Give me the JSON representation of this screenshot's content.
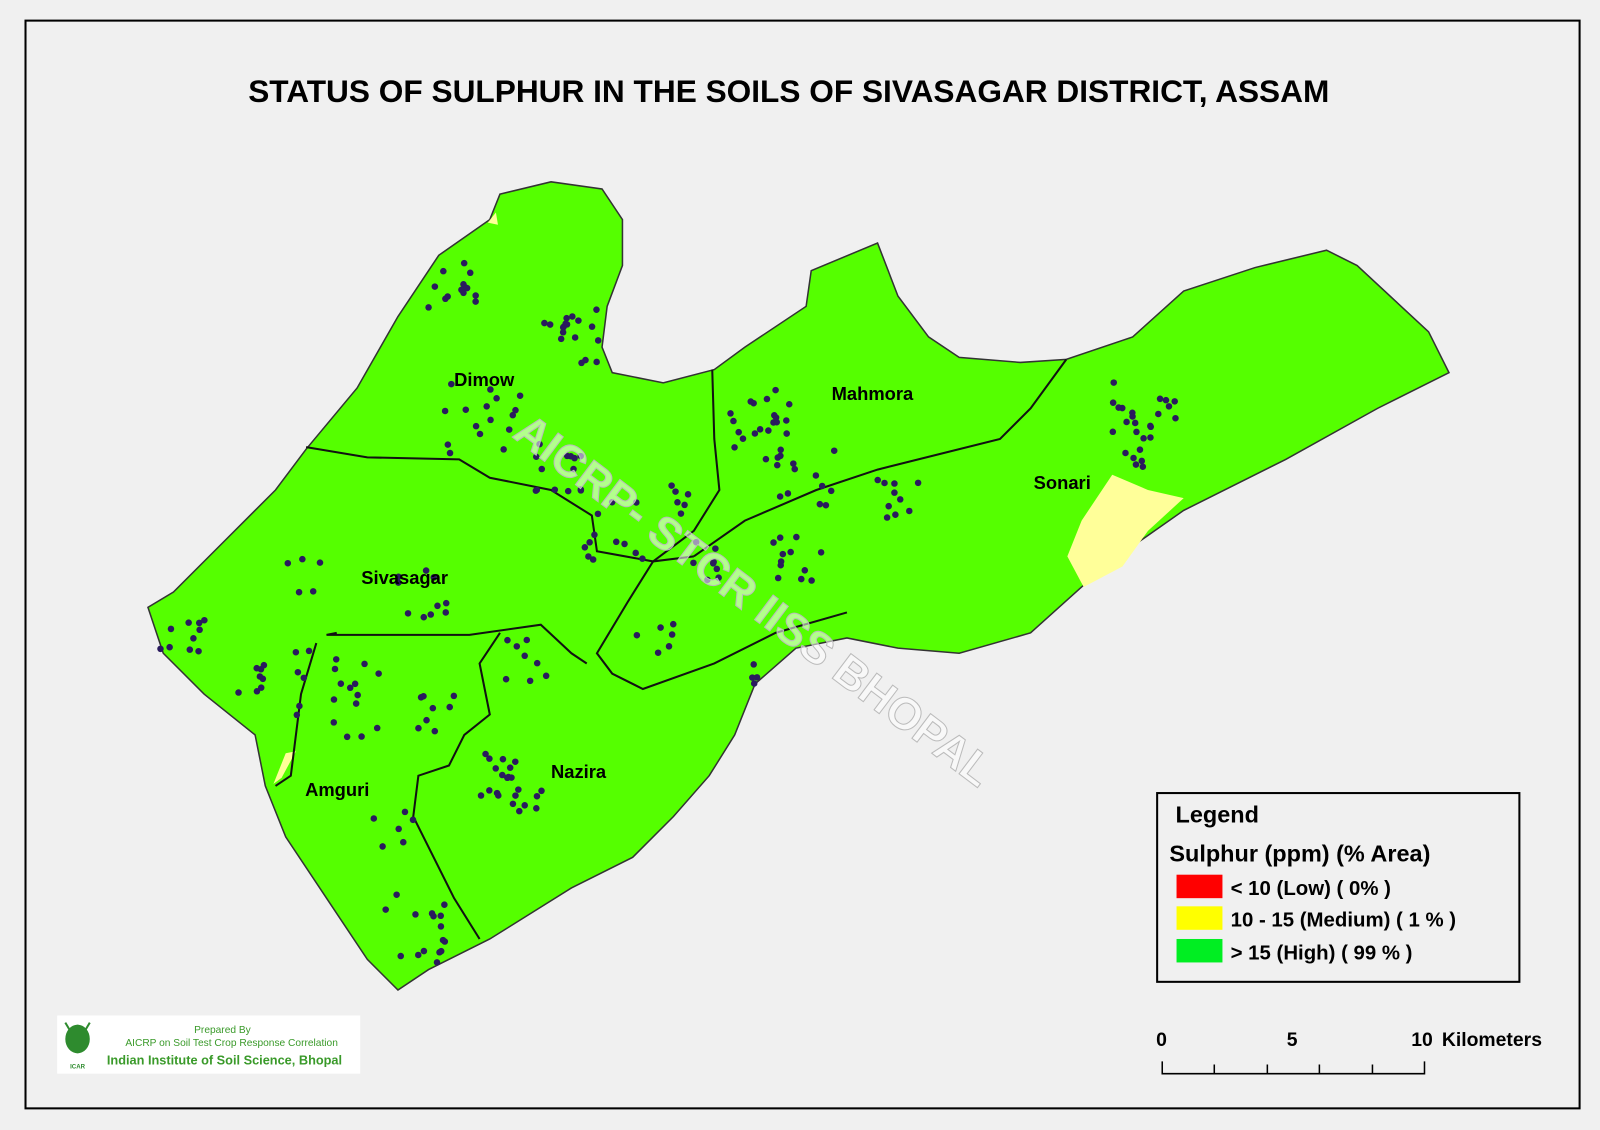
{
  "title": "STATUS OF SULPHUR  IN THE SOILS OF SIVASAGAR DISTRICT, ASSAM",
  "watermark": "AICRP- STCR IISS BHOPAL",
  "regions": [
    {
      "name": "Dimow"
    },
    {
      "name": "Mahmora"
    },
    {
      "name": "Sonari"
    },
    {
      "name": "Sivasagar"
    },
    {
      "name": "Amguri"
    },
    {
      "name": "Nazira"
    }
  ],
  "legend": {
    "heading": "Legend",
    "subtitle": "Sulphur (ppm) (% Area)",
    "items": [
      {
        "label": "< 10 (Low) ( 0% )",
        "color": "#ff0000",
        "percent_area": 0
      },
      {
        "label": "10 - 15 (Medium) ( 1 % )",
        "color": "#ffff00",
        "percent_area": 1
      },
      {
        "label": "> 15 (High) ( 99 % )",
        "color": "#00ff00",
        "percent_area": 99
      }
    ]
  },
  "map_fill_color": "#55ff00",
  "medium_fill_color": "#ffff99",
  "sample_point_color": "#2a1a5e",
  "scale_bar": {
    "ticks": [
      "0",
      "5",
      "10"
    ],
    "unit": "Kilometers"
  },
  "credit": {
    "line1": "Prepared By",
    "line2": "AICRP on Soil Test Crop Response Correlation",
    "line3": "Indian Institute of Soil Science, Bhopal",
    "logo_text": "ICAR"
  }
}
